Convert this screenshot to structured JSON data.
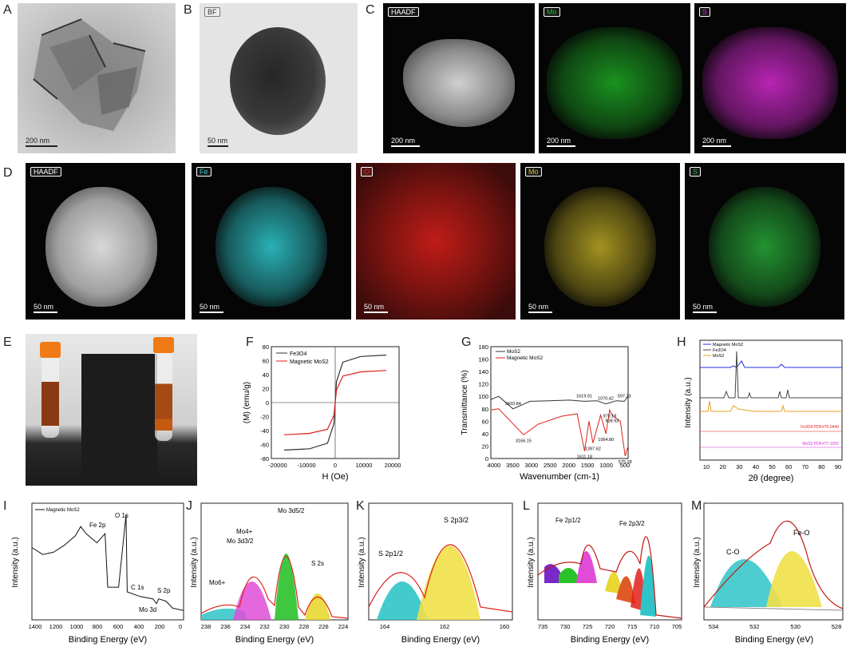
{
  "panels": {
    "A": {
      "label": "A",
      "scale": "200 nm"
    },
    "B": {
      "label": "B",
      "tag": "BF",
      "scale": "50 nm"
    },
    "C": {
      "label": "C",
      "maps": [
        {
          "tag": "HAADF",
          "scale": "200 nm"
        },
        {
          "tag": "Mo",
          "scale": "200 nm",
          "color": "#22c22a"
        },
        {
          "tag": "S",
          "scale": "200 nm",
          "color": "#d62ad2"
        }
      ]
    },
    "D": {
      "label": "D",
      "maps": [
        {
          "tag": "HAADF",
          "scale": "50 nm"
        },
        {
          "tag": "Fe",
          "scale": "50 nm",
          "color": "#2ec4c8"
        },
        {
          "tag": "O",
          "scale": "50 nm",
          "color": "#e0201a"
        },
        {
          "tag": "Mo",
          "scale": "50 nm",
          "color": "#d8c22a"
        },
        {
          "tag": "S",
          "scale": "50 nm",
          "color": "#2ab63c"
        }
      ]
    },
    "E": {
      "label": "E"
    },
    "F": {
      "label": "F",
      "xlabel": "H (Oe)",
      "ylabel": "(M) (emu/g)",
      "legend": [
        "Fe3O4",
        "Magnetic MoS2"
      ],
      "xticks": [
        "-20000",
        "-10000",
        "0",
        "10000",
        "20000"
      ],
      "yticks": [
        "80",
        "60",
        "40",
        "20",
        "0",
        "-20",
        "-40",
        "-60",
        "-80"
      ]
    },
    "G": {
      "label": "G",
      "xlabel": "Wavenumber (cm-1)",
      "ylabel": "Transmittance (%)",
      "legend": [
        "MoS2",
        "Magnetic MoS2"
      ],
      "xticks": [
        "4000",
        "3500",
        "3000",
        "2500",
        "2000",
        "1500",
        "1000",
        "500"
      ],
      "yticks": [
        "180",
        "160",
        "140",
        "120",
        "100",
        "80",
        "60",
        "40",
        "20",
        "0"
      ],
      "annotations": [
        "3433.84",
        "1619.91",
        "1070.42",
        "597.33",
        "3166.15",
        "1611.18",
        "1397.62",
        "1064.80",
        "908.93",
        "970.18",
        "575.28"
      ]
    },
    "H": {
      "label": "H",
      "xlabel": "2θ (degree)",
      "ylabel": "Intensity (a.u.)",
      "legend": [
        "Magnetic MoS2",
        "Fe3O4",
        "MoS2"
      ],
      "xticks": [
        "10",
        "20",
        "30",
        "40",
        "50",
        "60",
        "70",
        "80",
        "90"
      ],
      "refs": [
        "Fe3O4  PDF#75-0449",
        "MoS2  PDF#77-1092"
      ]
    },
    "I": {
      "label": "I",
      "xlabel": "Binding Energy (eV)",
      "ylabel": "Intensity (a.u.)",
      "legend": "Magnetic MoS2",
      "xticks": [
        "1400",
        "1200",
        "1000",
        "800",
        "600",
        "400",
        "200",
        "0"
      ],
      "peaks": [
        "Fe 2p",
        "O 1s",
        "C 1s",
        "S 2p",
        "Mo 3d"
      ]
    },
    "J": {
      "label": "J",
      "xlabel": "Binding Energy (eV)",
      "ylabel": "Intensity (a.u.)",
      "xticks": [
        "238",
        "236",
        "234",
        "232",
        "230",
        "228",
        "226",
        "224"
      ],
      "peaks": [
        "Mo4+",
        "Mo 3d5/2",
        "Mo 3d3/2",
        "S 2s",
        "Mo6+"
      ]
    },
    "K": {
      "label": "K",
      "xlabel": "Binding Energy (eV)",
      "ylabel": "Intensity (a.u.)",
      "xticks": [
        "164",
        "162",
        "160"
      ],
      "peaks": [
        "S 2p1/2",
        "S 2p3/2"
      ]
    },
    "L": {
      "label": "L",
      "xlabel": "Binding Energy (eV)",
      "ylabel": "Intensity (a.u.)",
      "xticks": [
        "735",
        "730",
        "725",
        "720",
        "715",
        "710",
        "705"
      ],
      "peaks": [
        "Fe 2p1/2",
        "Fe 2p3/2"
      ]
    },
    "M": {
      "label": "M",
      "xlabel": "Binding Energy (eV)",
      "ylabel": "Intensity (a.u.)",
      "xticks": [
        "534",
        "532",
        "530",
        "528"
      ],
      "peaks": [
        "C-O",
        "Fe-O"
      ]
    }
  },
  "chart_data": [
    {
      "type": "line",
      "title": "F",
      "xlabel": "H (Oe)",
      "ylabel": "(M) (emu/g)",
      "xlim": [
        -25000,
        25000
      ],
      "ylim": [
        -80,
        80
      ],
      "series": [
        {
          "name": "Fe3O4",
          "x": [
            -20000,
            -10000,
            -3000,
            -500,
            0,
            500,
            3000,
            10000,
            20000
          ],
          "y": [
            -68,
            -66,
            -58,
            -30,
            0,
            30,
            58,
            66,
            68
          ]
        },
        {
          "name": "Magnetic MoS2",
          "x": [
            -20000,
            -10000,
            -3000,
            -500,
            0,
            500,
            3000,
            10000,
            20000
          ],
          "y": [
            -46,
            -44,
            -38,
            -18,
            0,
            18,
            38,
            44,
            46
          ]
        }
      ]
    },
    {
      "type": "line",
      "title": "G",
      "xlabel": "Wavenumber (cm-1)",
      "ylabel": "Transmittance (%)",
      "xlim": [
        4000,
        500
      ],
      "ylim": [
        0,
        180
      ],
      "series": [
        {
          "name": "MoS2",
          "x": [
            4000,
            3800,
            3433.84,
            3000,
            2500,
            2000,
            1619.91,
            1300,
            1070.42,
            800,
            597.33,
            500
          ],
          "y": [
            95,
            100,
            80,
            92,
            93,
            94,
            92,
            93,
            88,
            93,
            92,
            100
          ]
        },
        {
          "name": "Magnetic MoS2",
          "x": [
            4000,
            3800,
            3500,
            3166.15,
            2800,
            2200,
            1800,
            1611.18,
            1500,
            1397.62,
            1200,
            1064.8,
            970.18,
            908.93,
            700,
            575.28,
            500
          ],
          "y": [
            78,
            80,
            60,
            38,
            55,
            68,
            72,
            12,
            60,
            25,
            70,
            40,
            78,
            70,
            60,
            4,
            20
          ]
        }
      ]
    },
    {
      "type": "line",
      "title": "I",
      "xlabel": "Binding Energy (eV)",
      "ylabel": "Intensity (a.u.)",
      "xlim": [
        1400,
        0
      ],
      "series": [
        {
          "name": "Magnetic MoS2",
          "x": [
            1400,
            1300,
            1200,
            1100,
            1000,
            950,
            900,
            800,
            725,
            700,
            600,
            531,
            520,
            400,
            284,
            250,
            230,
            162,
            100,
            0
          ],
          "y": [
            62,
            56,
            58,
            64,
            72,
            80,
            74,
            66,
            74,
            28,
            28,
            90,
            24,
            20,
            18,
            14,
            18,
            16,
            10,
            8
          ]
        }
      ]
    }
  ]
}
